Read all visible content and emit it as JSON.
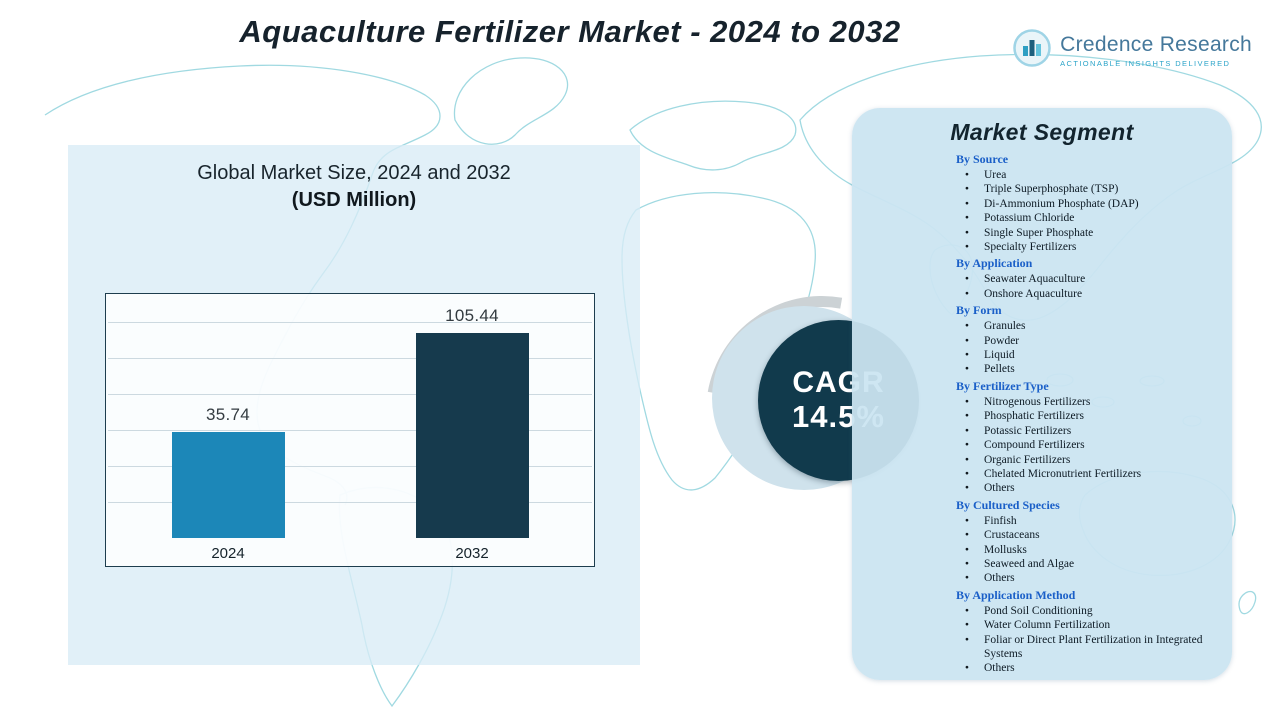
{
  "header": {
    "title": "Aquaculture Fertilizer Market - 2024 to 2032",
    "logo": {
      "name": "Credence Research",
      "tagline": "Actionable Insights Delivered"
    }
  },
  "chart_panel": {
    "subtitle_line1": "Global Market Size, 2024 and 2032",
    "subtitle_line2": "(USD Million)"
  },
  "chart_data": {
    "type": "bar",
    "title": "Global Market Size, 2024 and 2032 (USD Million)",
    "units": "USD Million",
    "categories": [
      "2024",
      "2032"
    ],
    "values": [
      35.74,
      105.44
    ],
    "value_labels": [
      "35.74",
      "105.44"
    ],
    "bar_colors": [
      "#1c87b8",
      "#163a4d"
    ],
    "ylim": [
      0,
      120
    ],
    "grid": true,
    "legend": false
  },
  "cagr": {
    "label": "CAGR",
    "value": "14.5%"
  },
  "segments": {
    "title": "Market Segment",
    "groups": [
      {
        "heading": "By Source",
        "items": [
          "Urea",
          "Triple Superphosphate (TSP)",
          "Di-Ammonium Phosphate (DAP)",
          "Potassium Chloride",
          "Single Super Phosphate",
          "Specialty Fertilizers"
        ]
      },
      {
        "heading": "By Application",
        "items": [
          "Seawater Aquaculture",
          "Onshore Aquaculture"
        ]
      },
      {
        "heading": "By Form",
        "items": [
          "Granules",
          "Powder",
          "Liquid",
          "Pellets"
        ]
      },
      {
        "heading": "By Fertilizer Type",
        "items": [
          "Nitrogenous Fertilizers",
          "Phosphatic Fertilizers",
          "Potassic Fertilizers",
          "Compound Fertilizers",
          "Organic Fertilizers",
          "Chelated Micronutrient Fertilizers",
          "Others"
        ]
      },
      {
        "heading": "By Cultured Species",
        "items": [
          "Finfish",
          "Crustaceans",
          "Mollusks",
          "Seaweed and Algae",
          "Others"
        ]
      },
      {
        "heading": "By Application Method",
        "items": [
          "Pond Soil Conditioning",
          "Water Column Fertilization",
          "Foliar or Direct Plant Fertilization in Integrated Systems",
          "Others"
        ]
      }
    ]
  },
  "colors": {
    "accent_dark": "#163a4d",
    "accent_blue": "#1c87b8",
    "left_panel": "#d8ecf6",
    "segment_panel": "#cbe4f1",
    "heading_blue": "#1a5fc8",
    "map_line": "#8fd2dc",
    "cagr_circle": "#113a4c"
  }
}
